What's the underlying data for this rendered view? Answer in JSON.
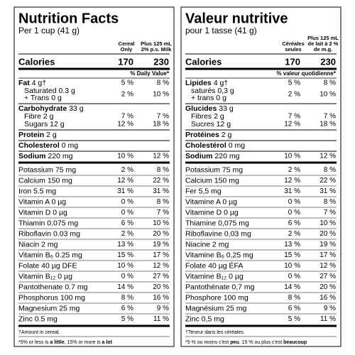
{
  "panels": [
    {
      "title": "Nutrition Facts",
      "serving": "Per 1 cup (41 g)",
      "col_headers": [
        [
          "Cereal",
          "Only"
        ],
        [
          "Plus 125 mL",
          "2% p.s. Milk"
        ]
      ],
      "calories_label": "Calories",
      "calories": [
        "170",
        "230"
      ],
      "dv_header": "% Daily Value*",
      "nutrients": [
        {
          "name": "Fat",
          "amount": "4 g†",
          "values": [
            "5 %",
            "8 %"
          ],
          "sub": [
            {
              "lines": [
                "Saturated 0.3 g",
                "+ Trans 0 g"
              ],
              "values": [
                "2 %",
                "10 %"
              ]
            }
          ]
        },
        {
          "name": "Carbohydrate",
          "amount": "33 g",
          "sub": [
            {
              "lines": [
                "Fibre 2 g"
              ],
              "values": [
                "7 %",
                "7 %"
              ]
            },
            {
              "lines": [
                "Sugars 12 g"
              ],
              "values": [
                "12 %",
                "18 %"
              ]
            }
          ]
        },
        {
          "name": "Protein",
          "amount": "2 g"
        },
        {
          "name": "Cholesterol",
          "amount": "0 mg"
        },
        {
          "name": "Sodium",
          "amount": "220 mg",
          "values": [
            "10 %",
            "12 %"
          ]
        }
      ],
      "micros": [
        {
          "label": "Potassium 75 mg",
          "values": [
            "2 %",
            "8 %"
          ]
        },
        {
          "label": "Calcium 150 mg",
          "values": [
            "12 %",
            "22 %"
          ]
        },
        {
          "label": "Iron 5.5 mg",
          "values": [
            "31 %",
            "31 %"
          ]
        },
        {
          "label": "Vitamin A 0 µg",
          "values": [
            "0 %",
            "8 %"
          ]
        },
        {
          "label": "Vitamin D 0 µg",
          "values": [
            "0 %",
            "7 %"
          ]
        },
        {
          "label": "Thiamin 0.075 mg",
          "values": [
            "6 %",
            "10 %"
          ]
        },
        {
          "label": "Riboflavin 0.03 mg",
          "values": [
            "2 %",
            "20 %"
          ]
        },
        {
          "label": "Niacin 2 mg",
          "values": [
            "13 %",
            "19 %"
          ]
        },
        {
          "label": "Vitamin B₆ 0.25 mg",
          "values": [
            "15 %",
            "17 %"
          ]
        },
        {
          "label": "Folate 40 µg DFE",
          "values": [
            "10 %",
            "12 %"
          ]
        },
        {
          "label": "Vitamin B₁₂ 0 µg",
          "values": [
            "0 %",
            "27 %"
          ]
        },
        {
          "label": "Pantothenate 0.7 mg",
          "values": [
            "14 %",
            "20 %"
          ]
        },
        {
          "label": "Phosphorus 100 mg",
          "values": [
            "8 %",
            "16 %"
          ]
        },
        {
          "label": "Magnesium 25 mg",
          "values": [
            "6 %",
            "9 %"
          ]
        },
        {
          "label": "Zinc 0.5 mg",
          "values": [
            "5 %",
            "11 %"
          ]
        }
      ],
      "amount_note": "†Amount in cereal.",
      "dv_note": [
        "*5% or less is ",
        "a little",
        ", 15% or more is ",
        "a lot"
      ]
    },
    {
      "title": "Valeur nutritive",
      "serving": "pour 1 tasse (41 g)",
      "col_headers": [
        [
          "Céréales",
          "seules"
        ],
        [
          "Plus 125 mL",
          "de lait à 2 %",
          "de m.g."
        ]
      ],
      "calories_label": "Calories",
      "calories": [
        "170",
        "230"
      ],
      "dv_header": "% valeur quotidienne*",
      "nutrients": [
        {
          "name": "Lipides",
          "amount": "4 g†",
          "values": [
            "5 %",
            "8 %"
          ],
          "sub": [
            {
              "lines": [
                "saturés 0,3 g",
                "+ trans 0 g"
              ],
              "values": [
                "2 %",
                "10 %"
              ]
            }
          ]
        },
        {
          "name": "Glucides",
          "amount": "33 g",
          "sub": [
            {
              "lines": [
                "Fibres 2 g"
              ],
              "values": [
                "7 %",
                "7 %"
              ]
            },
            {
              "lines": [
                "Sucres 12 g"
              ],
              "values": [
                "12 %",
                "18 %"
              ]
            }
          ]
        },
        {
          "name": "Protéines",
          "amount": "2 g"
        },
        {
          "name": "Cholestérol",
          "amount": "0 mg"
        },
        {
          "name": "Sodium",
          "amount": "220 mg",
          "values": [
            "10 %",
            "12 %"
          ]
        }
      ],
      "micros": [
        {
          "label": "Potassium 75 mg",
          "values": [
            "2 %",
            "8 %"
          ]
        },
        {
          "label": "Calcium 150 mg",
          "values": [
            "12 %",
            "22 %"
          ]
        },
        {
          "label": "Fer 5,5 mg",
          "values": [
            "31 %",
            "31 %"
          ]
        },
        {
          "label": "Vitamine A 0 µg",
          "values": [
            "0 %",
            "8 %"
          ]
        },
        {
          "label": "Vitamine D 0 µg",
          "values": [
            "0 %",
            "7 %"
          ]
        },
        {
          "label": "Thiamine 0,075 mg",
          "values": [
            "6 %",
            "10 %"
          ]
        },
        {
          "label": "Riboflavine 0,03 mg",
          "values": [
            "2 %",
            "20 %"
          ]
        },
        {
          "label": "Niacine 2 mg",
          "values": [
            "13 %",
            "19 %"
          ]
        },
        {
          "label": "Vitamine B₆ 0,25 mg",
          "values": [
            "15 %",
            "17 %"
          ]
        },
        {
          "label": "Folate 40 µg ÉFA",
          "values": [
            "10 %",
            "12 %"
          ]
        },
        {
          "label": "Vitamine B₁₂ 0 µg",
          "values": [
            "0 %",
            "27 %"
          ]
        },
        {
          "label": "Pantothénate 0,7 mg",
          "values": [
            "14 %",
            "20 %"
          ]
        },
        {
          "label": "Phosphore 100 mg",
          "values": [
            "8 %",
            "16 %"
          ]
        },
        {
          "label": "Magnésium 25 mg",
          "values": [
            "6 %",
            "9 %"
          ]
        },
        {
          "label": "Zinc 0,5 mg",
          "values": [
            "5 %",
            "11 %"
          ]
        }
      ],
      "amount_note": "†Teneur dans les céréales.",
      "dv_note": [
        "*5 % ou moins c'est ",
        "peu",
        ", 15 % ou plus c'est ",
        "beaucoup"
      ]
    }
  ]
}
